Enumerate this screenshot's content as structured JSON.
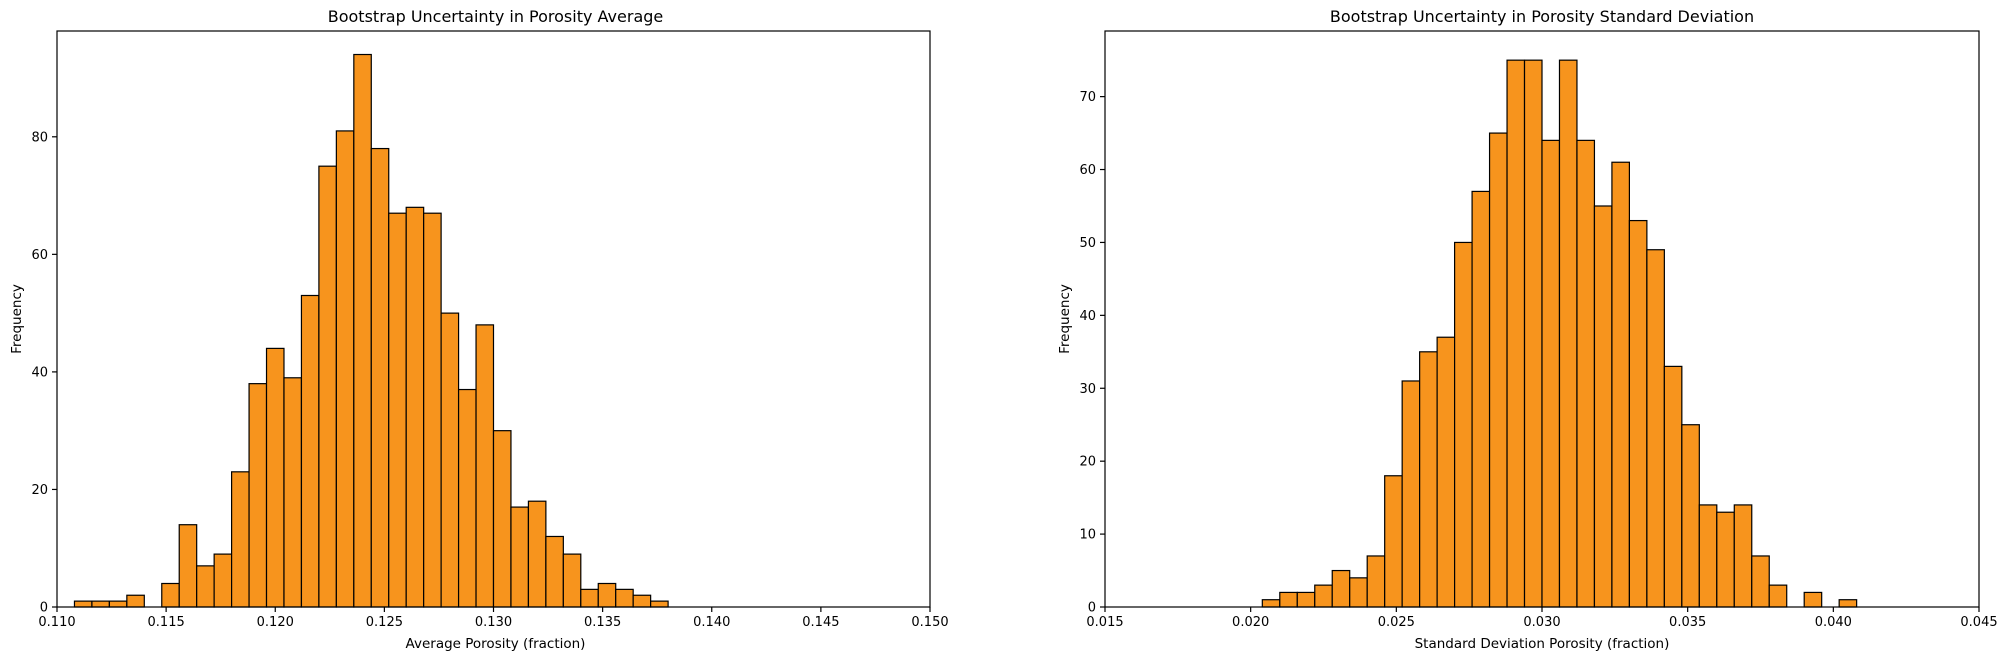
{
  "chart_data": [
    {
      "type": "bar",
      "title": "Bootstrap Uncertainty in Porosity Average",
      "xlabel": "Average Porosity (fraction)",
      "ylabel": "Frequency",
      "xlim": [
        0.11,
        0.15
      ],
      "ylim": [
        0,
        98
      ],
      "x_ticks": [
        0.11,
        0.115,
        0.12,
        0.125,
        0.13,
        0.135,
        0.14,
        0.145,
        0.15
      ],
      "x_tick_labels": [
        "0.110",
        "0.115",
        "0.120",
        "0.125",
        "0.130",
        "0.135",
        "0.140",
        "0.145",
        "0.150"
      ],
      "y_ticks": [
        0,
        20,
        40,
        60,
        80
      ],
      "y_tick_labels": [
        "0",
        "20",
        "40",
        "60",
        "80"
      ],
      "bin_start": 0.1108,
      "bin_width": 0.0008,
      "values": [
        1,
        1,
        1,
        2,
        0,
        4,
        14,
        7,
        9,
        23,
        38,
        44,
        39,
        53,
        75,
        81,
        94,
        78,
        67,
        68,
        67,
        50,
        37,
        48,
        30,
        17,
        18,
        12,
        9,
        3,
        4,
        3,
        2,
        1
      ],
      "bar_color": "#f7941d",
      "edge_color": "#000000",
      "grid": false
    },
    {
      "type": "bar",
      "title": "Bootstrap Uncertainty in Porosity Standard Deviation",
      "xlabel": "Standard Deviation Porosity (fraction)",
      "ylabel": "Frequency",
      "xlim": [
        0.015,
        0.045
      ],
      "ylim": [
        0,
        79
      ],
      "x_ticks": [
        0.015,
        0.02,
        0.025,
        0.03,
        0.035,
        0.04,
        0.045
      ],
      "x_tick_labels": [
        "0.015",
        "0.020",
        "0.025",
        "0.030",
        "0.035",
        "0.040",
        "0.045"
      ],
      "y_ticks": [
        0,
        10,
        20,
        30,
        40,
        50,
        60,
        70
      ],
      "y_tick_labels": [
        "0",
        "10",
        "20",
        "30",
        "40",
        "50",
        "60",
        "70"
      ],
      "bin_start": 0.0204,
      "bin_width": 0.0006,
      "values": [
        1,
        2,
        2,
        3,
        5,
        4,
        7,
        18,
        31,
        35,
        37,
        50,
        57,
        65,
        75,
        75,
        64,
        75,
        64,
        55,
        61,
        53,
        49,
        33,
        25,
        14,
        13,
        14,
        7,
        3,
        0,
        2,
        0,
        1
      ],
      "bar_color": "#f7941d",
      "edge_color": "#000000",
      "grid": false
    }
  ]
}
